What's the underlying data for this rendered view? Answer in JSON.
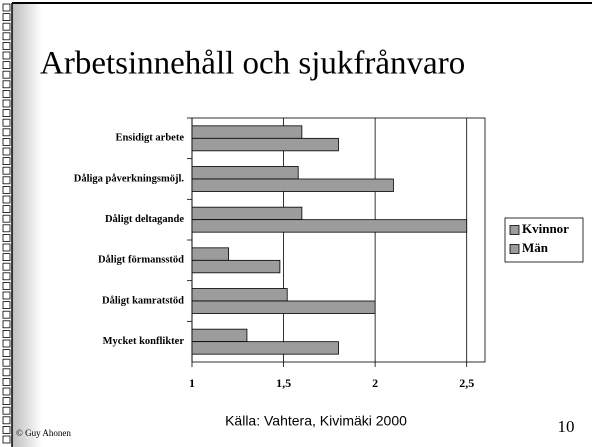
{
  "slide": {
    "title": "Arbetsinnehåll och sjukfrånvaro",
    "source": "Källa: Vahtera, Kivimäki 2000",
    "author": "© Guy Ahonen",
    "page_number": "10"
  },
  "chart_data": {
    "type": "bar",
    "orientation": "horizontal",
    "categories": [
      "Ensidigt arbete",
      "Dåliga påverkningsmöjl.",
      "Dåligt deltagande",
      "Dåligt förmansstöd",
      "Dåligt kamratstöd",
      "Mycket konflikter"
    ],
    "series": [
      {
        "name": "Kvinnor",
        "color": "#9c9c9c",
        "values": [
          1.6,
          1.58,
          1.6,
          1.2,
          1.52,
          1.3
        ]
      },
      {
        "name": "Män",
        "color": "#9c9c9c",
        "values": [
          1.8,
          2.1,
          2.5,
          1.48,
          2.0,
          1.8
        ]
      }
    ],
    "xlim": [
      1,
      2.6
    ],
    "xticks": [
      1,
      {
        "value": 1.5,
        "label": "1,5"
      },
      2,
      {
        "value": 2.5,
        "label": "2,5"
      }
    ],
    "grid": true,
    "legend": "right"
  }
}
